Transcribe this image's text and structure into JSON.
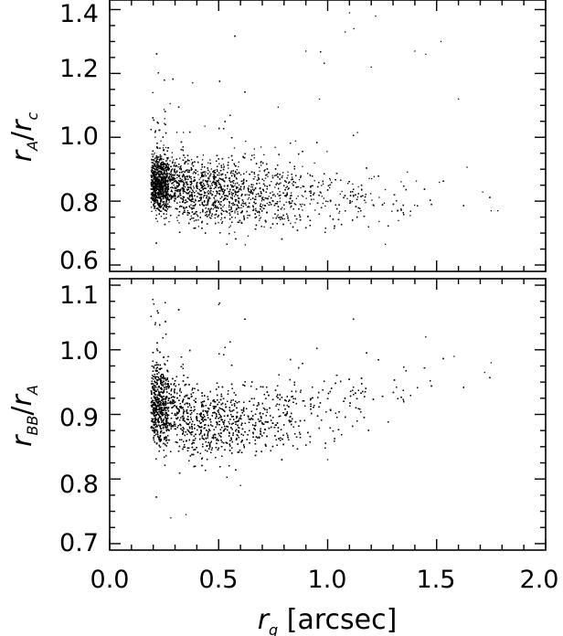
{
  "chart_data": [
    {
      "type": "scatter",
      "panel": "top",
      "ylabel": "r_A / r_c",
      "ylabel_main": "r",
      "ylabel_sub": "A",
      "ylabel_den_main": "r",
      "ylabel_den_sub": "c",
      "xlim": [
        0.0,
        2.0
      ],
      "ylim": [
        0.58,
        1.43
      ],
      "yticks": [
        0.6,
        0.8,
        1.0,
        1.2,
        1.4
      ],
      "ytick_labels": [
        "0.6",
        "0.8",
        "1.0",
        "1.2",
        "1.4"
      ],
      "xticks": [
        0.0,
        0.5,
        1.0,
        1.5,
        2.0
      ],
      "grid": false,
      "marker_color": "#000000",
      "point_count_estimate": 6500,
      "x_min_observed": 0.19,
      "trend": {
        "x": [
          0.19,
          0.4,
          0.6,
          0.8,
          1.0,
          1.2
        ],
        "y_center": [
          0.86,
          0.83,
          0.82,
          0.81,
          0.81,
          0.8
        ],
        "y_spread": [
          0.05,
          0.07,
          0.07,
          0.07,
          0.07,
          0.06
        ]
      },
      "outliers": [
        [
          1.1,
          1.39
        ],
        [
          1.22,
          1.38
        ],
        [
          1.08,
          1.33
        ],
        [
          1.12,
          1.34
        ],
        [
          1.4,
          1.27
        ],
        [
          1.45,
          1.26
        ],
        [
          1.52,
          1.3
        ],
        [
          1.6,
          1.12
        ],
        [
          1.75,
          0.77
        ],
        [
          1.78,
          0.77
        ],
        [
          1.2,
          1.22
        ],
        [
          0.9,
          1.27
        ]
      ]
    },
    {
      "type": "scatter",
      "panel": "bottom",
      "ylabel": "r_BB / r_A",
      "ylabel_main": "r",
      "ylabel_sub": "BB",
      "ylabel_den_main": "r",
      "ylabel_den_sub": "A",
      "xlabel": "r_g [arcsec]",
      "xlabel_main": "r",
      "xlabel_sub": "g",
      "xlabel_unit": "[arcsec]",
      "xlim": [
        0.0,
        2.0
      ],
      "ylim": [
        0.69,
        1.11
      ],
      "yticks": [
        0.7,
        0.8,
        0.9,
        1.0,
        1.1
      ],
      "ytick_labels": [
        "0.7",
        "0.8",
        "0.9",
        "1.0",
        "1.1"
      ],
      "xticks": [
        0.0,
        0.5,
        1.0,
        1.5,
        2.0
      ],
      "xtick_labels": [
        "0.0",
        "0.5",
        "1.0",
        "1.5",
        "2.0"
      ],
      "grid": false,
      "marker_color": "#000000",
      "point_count_estimate": 6500,
      "x_min_observed": 0.19,
      "trend": {
        "x": [
          0.19,
          0.4,
          0.6,
          0.8,
          1.0,
          1.2,
          1.4
        ],
        "y_center": [
          0.92,
          0.885,
          0.885,
          0.895,
          0.91,
          0.93,
          0.95
        ],
        "y_spread": [
          0.04,
          0.04,
          0.035,
          0.035,
          0.04,
          0.04,
          0.035
        ]
      },
      "outliers": [
        [
          0.28,
          0.74
        ],
        [
          0.35,
          0.745
        ],
        [
          0.6,
          0.79
        ],
        [
          0.5,
          1.07
        ],
        [
          1.75,
          0.98
        ],
        [
          1.72,
          0.965
        ],
        [
          1.58,
          0.99
        ],
        [
          1.45,
          1.02
        ],
        [
          1.0,
          0.83
        ]
      ]
    }
  ]
}
